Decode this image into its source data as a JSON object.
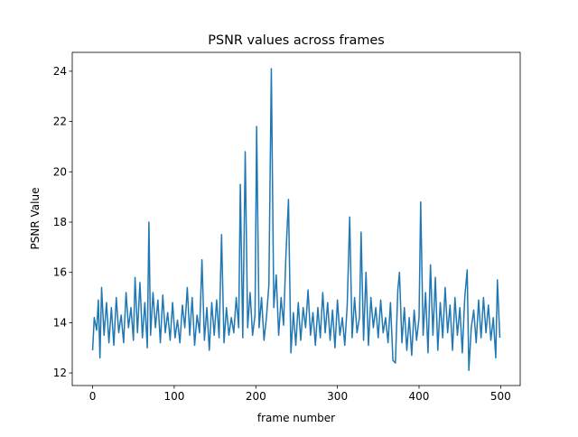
{
  "chart_data": {
    "type": "line",
    "title": "PSNR values across frames",
    "x_label": "frame number",
    "y_label": "PSNR Value",
    "xlim": [
      -24.95,
      523.95
    ],
    "ylim": [
      11.5,
      24.75
    ],
    "xticks": [
      0,
      100,
      200,
      300,
      400,
      500
    ],
    "yticks": [
      12,
      14,
      16,
      18,
      20,
      22,
      24
    ],
    "series": [
      {
        "color": "#1f77b4",
        "x": [
          0,
          2,
          5,
          7,
          9,
          11,
          14,
          17,
          20,
          23,
          26,
          29,
          32,
          35,
          38,
          41,
          44,
          47,
          50,
          52,
          55,
          58,
          61,
          64,
          67,
          69,
          71,
          74,
          77,
          80,
          83,
          86,
          89,
          92,
          95,
          98,
          101,
          104,
          107,
          110,
          113,
          116,
          119,
          122,
          125,
          128,
          131,
          134,
          137,
          140,
          143,
          146,
          149,
          152,
          155,
          158,
          161,
          164,
          167,
          170,
          173,
          176,
          179,
          181,
          184,
          187,
          190,
          193,
          196,
          199,
          201,
          204,
          207,
          210,
          213,
          216,
          219,
          222,
          225,
          228,
          231,
          234,
          237,
          240,
          243,
          246,
          249,
          252,
          255,
          258,
          261,
          264,
          267,
          270,
          273,
          276,
          279,
          282,
          285,
          288,
          291,
          294,
          297,
          300,
          303,
          306,
          309,
          312,
          315,
          318,
          321,
          324,
          327,
          329,
          332,
          335,
          338,
          341,
          344,
          347,
          350,
          353,
          356,
          359,
          362,
          365,
          368,
          371,
          374,
          376,
          379,
          382,
          385,
          388,
          391,
          394,
          397,
          400,
          402,
          405,
          408,
          411,
          414,
          417,
          420,
          423,
          426,
          429,
          432,
          435,
          438,
          441,
          444,
          447,
          450,
          453,
          456,
          459,
          461,
          464,
          467,
          470,
          473,
          476,
          479,
          482,
          485,
          488,
          491,
          494,
          496,
          499
        ],
        "values": [
          12.9,
          14.2,
          13.7,
          14.9,
          12.6,
          15.4,
          13.5,
          14.8,
          13.2,
          14.6,
          13.1,
          15.0,
          13.6,
          14.3,
          13.2,
          15.2,
          13.8,
          14.6,
          13.3,
          15.8,
          13.6,
          15.6,
          13.4,
          14.8,
          13.0,
          18.0,
          13.5,
          15.2,
          13.8,
          14.9,
          13.2,
          15.1,
          13.6,
          14.4,
          13.3,
          14.8,
          13.4,
          14.1,
          13.2,
          14.7,
          13.8,
          15.4,
          13.5,
          15.0,
          13.1,
          14.3,
          13.6,
          16.5,
          13.3,
          14.6,
          12.9,
          14.8,
          13.5,
          14.9,
          13.4,
          17.5,
          13.2,
          14.6,
          13.5,
          14.2,
          13.6,
          15.0,
          13.8,
          19.5,
          13.4,
          20.8,
          13.8,
          15.2,
          13.5,
          14.3,
          21.8,
          13.8,
          15.0,
          13.3,
          14.2,
          15.5,
          24.1,
          14.6,
          15.9,
          13.5,
          15.0,
          13.9,
          16.8,
          18.9,
          12.8,
          14.4,
          13.1,
          14.8,
          13.3,
          14.6,
          13.8,
          15.3,
          13.5,
          14.4,
          13.1,
          14.6,
          13.4,
          15.2,
          13.6,
          14.8,
          13.3,
          14.5,
          13.0,
          14.9,
          13.5,
          14.2,
          13.1,
          14.7,
          18.2,
          13.4,
          15.0,
          13.6,
          14.2,
          17.6,
          13.3,
          16.0,
          13.1,
          15.0,
          13.8,
          14.6,
          13.4,
          14.9,
          13.6,
          14.2,
          13.2,
          14.8,
          12.5,
          12.4,
          15.3,
          16.0,
          13.2,
          14.6,
          12.9,
          14.2,
          12.7,
          14.5,
          13.3,
          14.2,
          18.8,
          13.5,
          15.2,
          12.8,
          16.3,
          13.5,
          15.8,
          12.9,
          14.8,
          13.4,
          15.4,
          13.6,
          14.7,
          12.9,
          15.0,
          13.5,
          14.6,
          12.8,
          15.0,
          16.1,
          12.1,
          13.8,
          14.5,
          13.2,
          14.9,
          13.4,
          15.0,
          13.6,
          14.7,
          13.3,
          14.2,
          12.6,
          15.7,
          13.4
        ]
      }
    ]
  }
}
